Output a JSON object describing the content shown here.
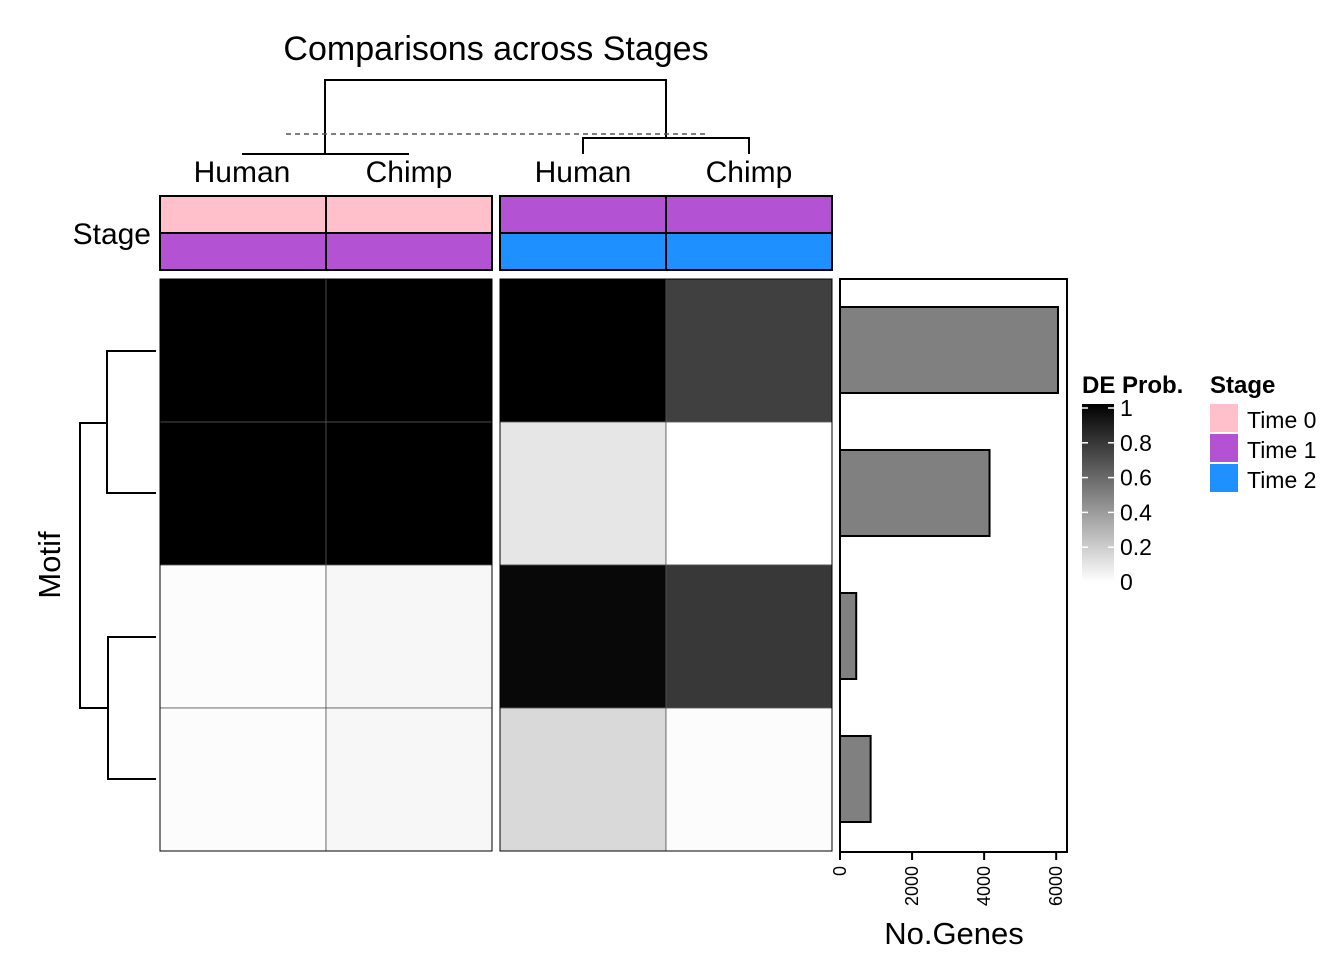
{
  "chart_data": {
    "type": "heatmap",
    "title": "Comparisons across Stages",
    "column_labels": [
      "Human",
      "Chimp",
      "Human",
      "Chimp"
    ],
    "column_stage_top": [
      "Time 0",
      "Time 0",
      "Time 1",
      "Time 1"
    ],
    "column_stage_bottom": [
      "Time 1",
      "Time 1",
      "Time 2",
      "Time 2"
    ],
    "annotation_label": "Stage",
    "row_axis_label": "Motif",
    "rows": 4,
    "values": [
      [
        1.0,
        1.0,
        1.0,
        0.75
      ],
      [
        1.0,
        1.0,
        0.1,
        0.0
      ],
      [
        0.01,
        0.03,
        0.97,
        0.78
      ],
      [
        0.01,
        0.03,
        0.15,
        0.01
      ]
    ],
    "bar": {
      "xlabel": "No.Genes",
      "ticks": [
        "0",
        "2000",
        "4000",
        "6000"
      ],
      "tick_values": [
        0,
        2000,
        4000,
        6000
      ],
      "xlim": [
        0,
        6300
      ],
      "values": [
        6050,
        4150,
        450,
        850
      ],
      "color": "#808080"
    },
    "legend_de": {
      "title": "DE Prob.",
      "ticks": [
        "1",
        "0.8",
        "0.6",
        "0.4",
        "0.2",
        "0"
      ],
      "tick_values": [
        1,
        0.8,
        0.6,
        0.4,
        0.2,
        0
      ]
    },
    "legend_stage": {
      "title": "Stage",
      "items": [
        {
          "label": "Time 0",
          "color": "#FFC0CB"
        },
        {
          "label": "Time 1",
          "color": "#B452D4"
        },
        {
          "label": "Time 2",
          "color": "#1E90FF"
        }
      ]
    }
  }
}
